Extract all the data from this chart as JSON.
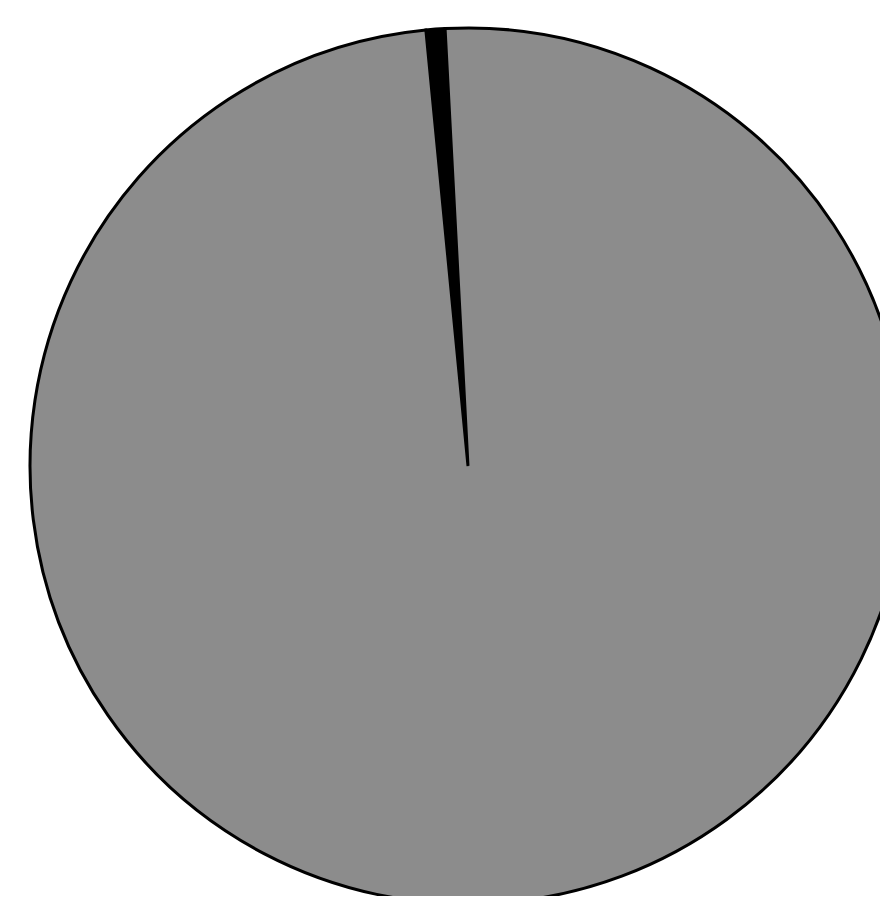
{
  "chart_data": {
    "type": "pie",
    "categories": [
      null,
      null
    ],
    "values": [
      0.7,
      99.3
    ],
    "colors": [
      "#000000",
      "#8c8c8c"
    ],
    "legend": false
  }
}
